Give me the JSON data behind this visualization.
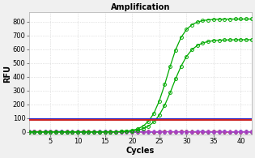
{
  "title": "Amplification",
  "xlabel": "Cycles",
  "ylabel": "RFU",
  "xlim": [
    1,
    42
  ],
  "ylim": [
    -20,
    870
  ],
  "yticks": [
    0,
    100,
    200,
    300,
    400,
    500,
    600,
    700,
    800
  ],
  "xticks": [
    5,
    10,
    15,
    20,
    25,
    30,
    35,
    40
  ],
  "threshold_line_blue": 95,
  "threshold_line_red": 85,
  "bg_color": "#f0f0f0",
  "plot_bg_color": "#ffffff",
  "green_color": "#00aa00",
  "blue_flat_color": "#3333cc",
  "red_flat_color": "#cc3333",
  "purple_flat_color": "#aa44cc",
  "threshold_color_blue": "#2222cc",
  "threshold_color_red": "#cc2222",
  "n_cycles": 42,
  "sigmoid_midpoint1": 26.5,
  "sigmoid_steepness1": 0.65,
  "sigmoid_max1": 820,
  "sigmoid_midpoint2": 27.5,
  "sigmoid_steepness2": 0.6,
  "sigmoid_max2": 670,
  "grid_color": "#cccccc",
  "title_fontsize": 7,
  "axis_label_fontsize": 7,
  "tick_fontsize": 6
}
